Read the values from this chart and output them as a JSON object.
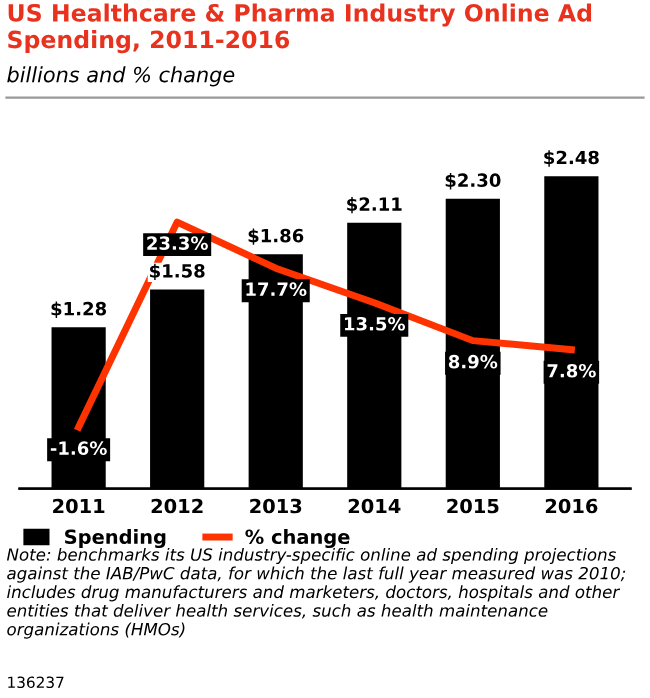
{
  "chart_data": {
    "type": "bar",
    "title": "US Healthcare & Pharma Industry Online Ad Spending, 2011-2016",
    "subtitle": "billions and % change",
    "categories": [
      "2011",
      "2012",
      "2013",
      "2014",
      "2015",
      "2016"
    ],
    "series": [
      {
        "name": "Spending",
        "color": "#000000",
        "values": [
          1.28,
          1.58,
          1.86,
          2.11,
          2.3,
          2.48
        ],
        "value_labels": [
          "$1.28",
          "$1.58",
          "$1.86",
          "$2.11",
          "$2.30",
          "$2.48"
        ]
      },
      {
        "name": "% change",
        "type": "line",
        "axis": "y2",
        "color": "#ff3300",
        "values": [
          -1.6,
          23.3,
          17.7,
          13.5,
          8.9,
          7.8
        ],
        "value_labels": [
          "-1.6%",
          "23.3%",
          "17.7%",
          "13.5%",
          "8.9%",
          "7.8%"
        ]
      }
    ],
    "tick_labels": "x",
    "grid": false,
    "legend": "bottom left",
    "marker": "none",
    "line_style": "solid",
    "annotations": [
      "Note: benchmarks its US industry-specific online ad spending projections against the IAB/PwC data, for which the last full year measured was 2010; includes drug manufacturers and marketers, doctors, hospitals and other entities that deliver health services, such as health maintenance organizations (HMOs)",
      "136237"
    ]
  }
}
